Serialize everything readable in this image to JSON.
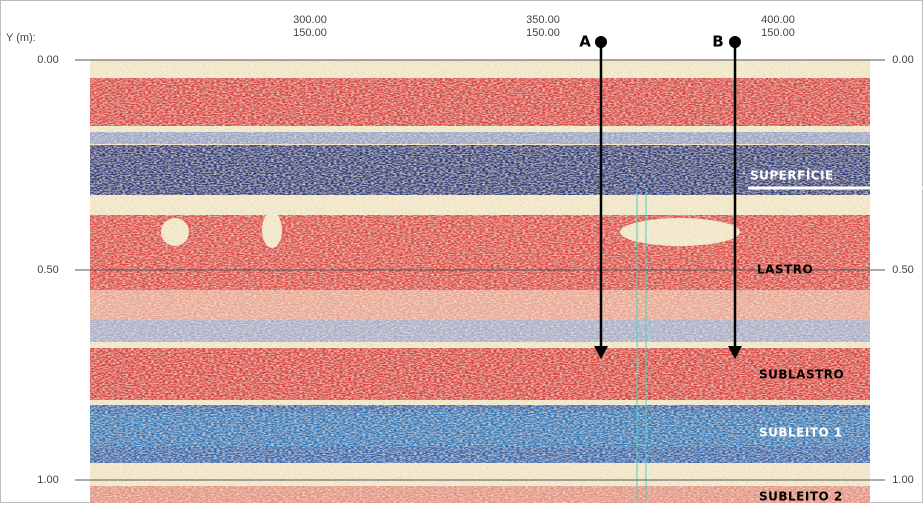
{
  "axis": {
    "label": "Y (m):",
    "top_labels": [
      [
        "300.00",
        "150.00"
      ],
      [
        "350.00",
        "150.00"
      ],
      [
        "400.00",
        "150.00"
      ]
    ],
    "left_ticks": [
      "0.00",
      "0.50",
      "1.00"
    ],
    "right_ticks": [
      "0.00",
      "0.50",
      "1.00"
    ]
  },
  "markers": [
    "A",
    "B"
  ],
  "layers": [
    "SUPERFÍCIE",
    "LASTRO",
    "SUBLASTRO",
    "SUBLEITO 1",
    "SUBLEITO 2"
  ]
}
